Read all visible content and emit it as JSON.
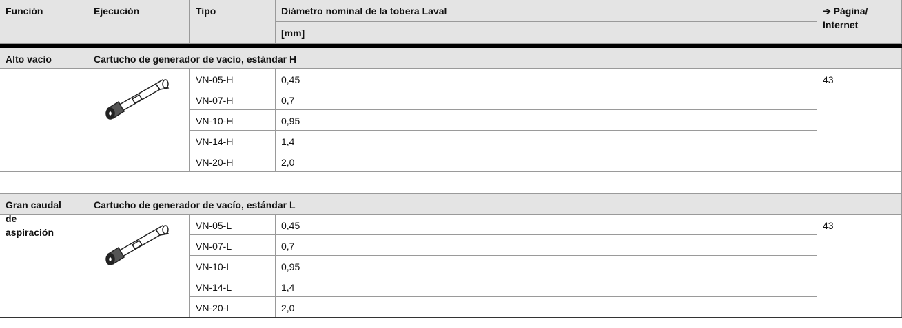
{
  "header": {
    "columns": [
      "Función",
      "Ejecución",
      "Tipo",
      "Diámetro nominal de la tobera Laval"
    ],
    "unit": "[mm]",
    "page": [
      "➔ Página/",
      "Internet"
    ]
  },
  "sections": [
    {
      "function": [
        "Alto vacío"
      ],
      "title": "Cartucho de generador de vacío, estándar H",
      "page": "43",
      "rows": [
        {
          "type": "VN-05-H",
          "diameter": "0,45"
        },
        {
          "type": "VN-07-H",
          "diameter": "0,7"
        },
        {
          "type": "VN-10-H",
          "diameter": "0,95"
        },
        {
          "type": "VN-14-H",
          "diameter": "1,4"
        },
        {
          "type": "VN-20-H",
          "diameter": "2,0"
        }
      ]
    },
    {
      "function": [
        "Gran caudal",
        "de",
        "aspiración"
      ],
      "title": "Cartucho de generador de vacío, estándar L",
      "page": "43",
      "rows": [
        {
          "type": "VN-05-L",
          "diameter": "0,45"
        },
        {
          "type": "VN-07-L",
          "diameter": "0,7"
        },
        {
          "type": "VN-10-L",
          "diameter": "0,95"
        },
        {
          "type": "VN-14-L",
          "diameter": "1,4"
        },
        {
          "type": "VN-20-L",
          "diameter": "2,0"
        }
      ]
    }
  ]
}
